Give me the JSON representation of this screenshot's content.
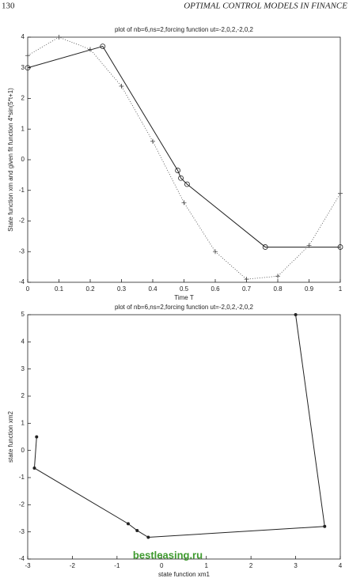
{
  "header": {
    "page_number": "130",
    "running_title": "OPTIMAL CONTROL MODELS IN FINANCE"
  },
  "chart_data": [
    {
      "type": "line",
      "title": "plot of nb=6,ns=2,forcing function ut=-2,0,2,-2,0,2",
      "xlabel": "Time T",
      "ylabel": "State function xm and given fit function 4*sin(5*t+1)",
      "xlim": [
        0,
        1
      ],
      "xticks": [
        0,
        0.1,
        0.2,
        0.3,
        0.4,
        0.5,
        0.6,
        0.7,
        0.8,
        0.9,
        1
      ],
      "ylim": [
        -4,
        4
      ],
      "yticks": [
        -4,
        -3,
        -2,
        -1,
        0,
        1,
        2,
        3,
        4
      ],
      "series": [
        {
          "color": "#222222",
          "linestyle": "solid",
          "marker": "o",
          "x": [
            0,
            0.24,
            0.48,
            0.49,
            0.51,
            0.76,
            1.0
          ],
          "values": [
            3.0,
            3.7,
            -0.35,
            -0.6,
            -0.8,
            -2.85,
            -2.85
          ]
        },
        {
          "color": "#444444",
          "linestyle": "dotted",
          "marker": "+",
          "x": [
            0,
            0.1,
            0.2,
            0.3,
            0.4,
            0.5,
            0.6,
            0.7,
            0.8,
            0.9,
            1.0
          ],
          "values": [
            3.4,
            4.0,
            3.6,
            2.4,
            0.6,
            -1.4,
            -3.0,
            -3.9,
            -3.8,
            -2.8,
            -1.1
          ]
        }
      ]
    },
    {
      "type": "line",
      "title": "plot of nb=6,ns=2,forcing function ut=-2,0,2,-2,0,2",
      "xlabel": "state function xm1",
      "ylabel": "state function xm2",
      "xlim": [
        -3,
        4
      ],
      "xticks": [
        -3,
        -2,
        -1,
        0,
        1,
        2,
        3,
        4
      ],
      "ylim": [
        -4,
        5
      ],
      "yticks": [
        -4,
        -3,
        -2,
        -1,
        0,
        1,
        2,
        3,
        4,
        5
      ],
      "series": [
        {
          "color": "#222222",
          "linestyle": "solid",
          "marker": ".",
          "x": [
            -2.8,
            -2.85,
            -0.75,
            -0.55,
            -0.3,
            3.65,
            3.0
          ],
          "values": [
            0.5,
            -0.65,
            -2.7,
            -2.95,
            -3.2,
            -2.8,
            5.0
          ]
        }
      ]
    }
  ],
  "watermark": "bestleasing.ru"
}
